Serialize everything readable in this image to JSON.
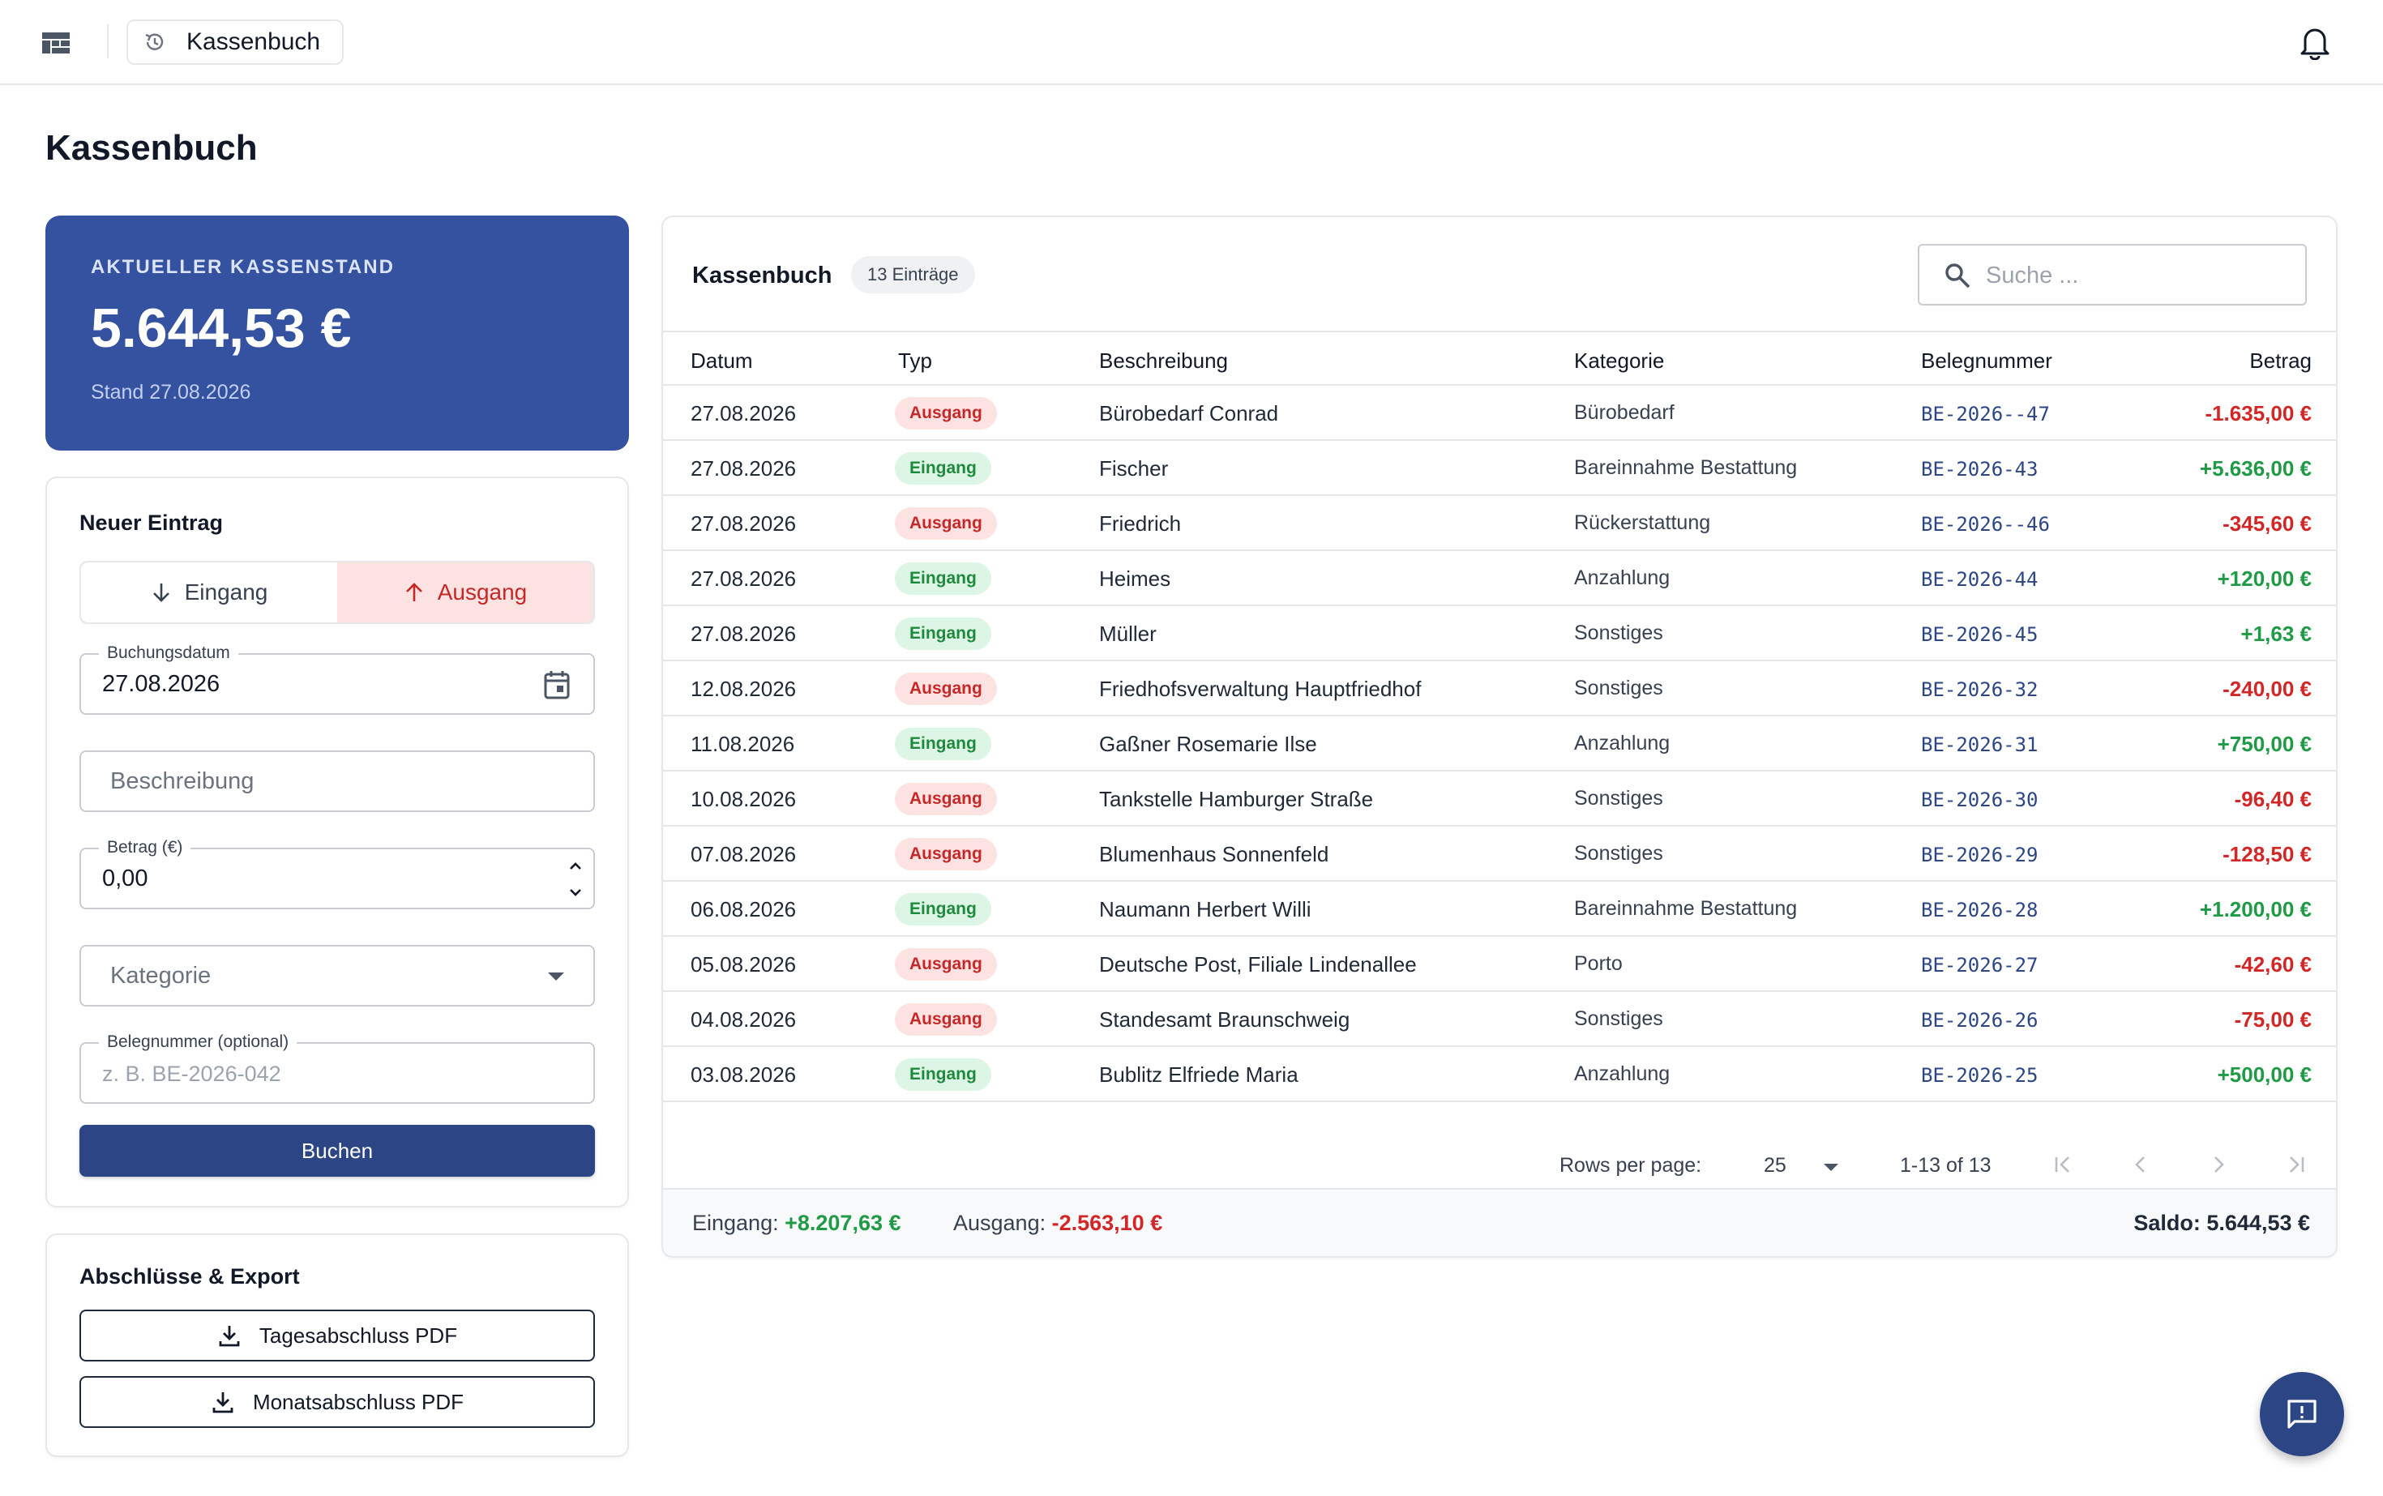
{
  "header": {
    "breadcrumb": "Kassenbuch"
  },
  "page": {
    "title": "Kassenbuch"
  },
  "balance": {
    "label": "AKTUELLER KASSENSTAND",
    "amount": "5.644,53 €",
    "stand": "Stand 27.08.2026"
  },
  "form": {
    "title": "Neuer Eintrag",
    "toggle_in": "Eingang",
    "toggle_out": "Ausgang",
    "date_label": "Buchungsdatum",
    "date_value": "27.08.2026",
    "desc_placeholder": "Beschreibung",
    "amount_label": "Betrag (€)",
    "amount_value": "0,00",
    "category_placeholder": "Kategorie",
    "beleg_label": "Belegnummer (optional)",
    "beleg_placeholder": "z. B. BE-2026-042",
    "submit": "Buchen"
  },
  "export": {
    "title": "Abschlüsse & Export",
    "daily": "Tagesabschluss PDF",
    "monthly": "Monatsabschluss PDF"
  },
  "table": {
    "title": "Kassenbuch",
    "count": "13 Einträge",
    "search_placeholder": "Suche ...",
    "columns": [
      "Datum",
      "Typ",
      "Beschreibung",
      "Kategorie",
      "Belegnummer",
      "Betrag"
    ],
    "rows": [
      {
        "date": "27.08.2026",
        "type": "Ausgang",
        "desc": "Bürobedarf Conrad",
        "cat": "Bürobedarf",
        "beleg": "BE-2026--47",
        "amount": "-1.635,00 €"
      },
      {
        "date": "27.08.2026",
        "type": "Eingang",
        "desc": "Fischer",
        "cat": "Bareinnahme Bestattung",
        "beleg": "BE-2026-43",
        "amount": "+5.636,00 €"
      },
      {
        "date": "27.08.2026",
        "type": "Ausgang",
        "desc": "Friedrich",
        "cat": "Rückerstattung",
        "beleg": "BE-2026--46",
        "amount": "-345,60 €"
      },
      {
        "date": "27.08.2026",
        "type": "Eingang",
        "desc": "Heimes",
        "cat": "Anzahlung",
        "beleg": "BE-2026-44",
        "amount": "+120,00 €"
      },
      {
        "date": "27.08.2026",
        "type": "Eingang",
        "desc": "Müller",
        "cat": "Sonstiges",
        "beleg": "BE-2026-45",
        "amount": "+1,63 €"
      },
      {
        "date": "12.08.2026",
        "type": "Ausgang",
        "desc": "Friedhofsverwaltung Hauptfriedhof",
        "cat": "Sonstiges",
        "beleg": "BE-2026-32",
        "amount": "-240,00 €"
      },
      {
        "date": "11.08.2026",
        "type": "Eingang",
        "desc": "Gaßner Rosemarie Ilse",
        "cat": "Anzahlung",
        "beleg": "BE-2026-31",
        "amount": "+750,00 €"
      },
      {
        "date": "10.08.2026",
        "type": "Ausgang",
        "desc": "Tankstelle Hamburger Straße",
        "cat": "Sonstiges",
        "beleg": "BE-2026-30",
        "amount": "-96,40 €"
      },
      {
        "date": "07.08.2026",
        "type": "Ausgang",
        "desc": "Blumenhaus Sonnenfeld",
        "cat": "Sonstiges",
        "beleg": "BE-2026-29",
        "amount": "-128,50 €"
      },
      {
        "date": "06.08.2026",
        "type": "Eingang",
        "desc": "Naumann Herbert Willi",
        "cat": "Bareinnahme Bestattung",
        "beleg": "BE-2026-28",
        "amount": "+1.200,00 €"
      },
      {
        "date": "05.08.2026",
        "type": "Ausgang",
        "desc": "Deutsche Post, Filiale Lindenallee",
        "cat": "Porto",
        "beleg": "BE-2026-27",
        "amount": "-42,60 €"
      },
      {
        "date": "04.08.2026",
        "type": "Ausgang",
        "desc": "Standesamt Braunschweig",
        "cat": "Sonstiges",
        "beleg": "BE-2026-26",
        "amount": "-75,00 €"
      },
      {
        "date": "03.08.2026",
        "type": "Eingang",
        "desc": "Bublitz Elfriede Maria",
        "cat": "Anzahlung",
        "beleg": "BE-2026-25",
        "amount": "+500,00 €"
      }
    ],
    "pagination": {
      "rows_label": "Rows per page:",
      "rows_value": "25",
      "range": "1-13 of 13"
    },
    "summary": {
      "in_label": "Eingang:",
      "in_value": "+8.207,63 €",
      "out_label": "Ausgang:",
      "out_value": "-2.563,10 €",
      "saldo": "Saldo: 5.644,53 €"
    }
  },
  "colors": {
    "primary": "#2c4585",
    "balance_card": "#3452a0",
    "positive": "#1f9a45",
    "negative": "#d32626"
  }
}
